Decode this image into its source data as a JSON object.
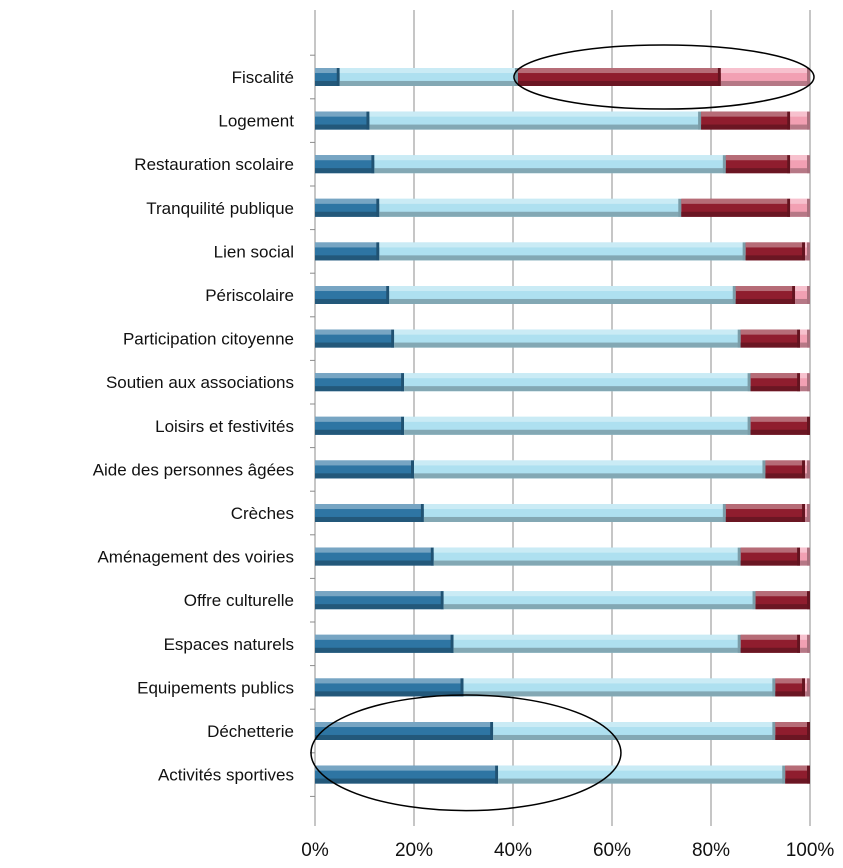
{
  "chart_data": {
    "type": "bar",
    "orientation": "horizontal",
    "stacked": "percent",
    "title": "",
    "xlabel": "",
    "ylabel": "",
    "xlim": [
      0,
      100
    ],
    "x_ticks": [
      "0%",
      "20%",
      "40%",
      "60%",
      "80%",
      "100%"
    ],
    "grid": true,
    "legend": "none",
    "categories": [
      "Fiscalité",
      "Logement",
      "Restauration scolaire",
      "Tranquilité publique",
      "Lien social",
      "Périscolaire",
      "Participation citoyenne",
      "Soutien aux associations",
      "Loisirs et festivités",
      "Aide des personnes âgées",
      "Crèches",
      "Aménagement des voiries",
      "Offre culturelle",
      "Espaces naturels",
      "Equipements publics",
      "Déchetterie",
      "Activités sportives"
    ],
    "series": [
      {
        "color": "#2e75a3",
        "values": [
          5,
          11,
          12,
          13,
          13,
          15,
          16,
          18,
          18,
          20,
          22,
          24,
          26,
          28,
          30,
          36,
          37
        ]
      },
      {
        "color": "#aee0f0",
        "values": [
          36,
          67,
          71,
          61,
          74,
          70,
          70,
          70,
          70,
          71,
          61,
          62,
          63,
          58,
          63,
          57,
          58
        ]
      },
      {
        "color": "#8f1d2e",
        "values": [
          41,
          18,
          13,
          22,
          12,
          12,
          12,
          10,
          12,
          8,
          16,
          12,
          11,
          12,
          6,
          7,
          5
        ]
      },
      {
        "color": "#f2a0b3",
        "values": [
          18,
          4,
          4,
          4,
          1,
          3,
          2,
          2,
          0,
          1,
          1,
          2,
          0,
          2,
          1,
          0,
          0
        ]
      }
    ],
    "annotations": [
      {
        "shape": "ellipse",
        "target": "Fiscalité",
        "from_pct": 41,
        "to_pct": 100
      },
      {
        "shape": "ellipse",
        "target": [
          "Déchetterie",
          "Activités sportives"
        ],
        "from_pct": 0,
        "to_pct": 61
      }
    ]
  }
}
